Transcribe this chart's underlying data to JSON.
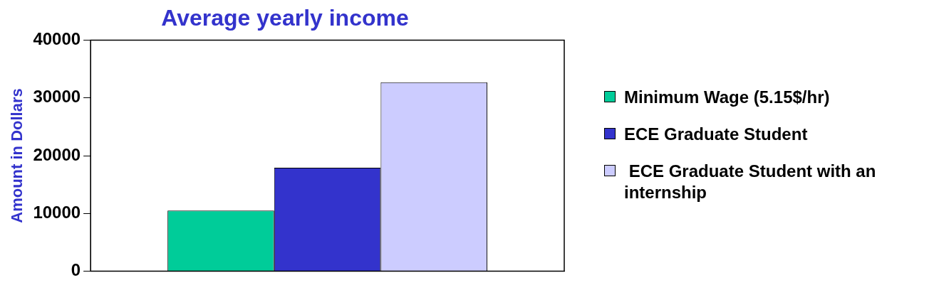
{
  "chart_data": {
    "type": "bar",
    "title": "Average yearly income",
    "ylabel": "Amount in Dollars",
    "categories": [
      null
    ],
    "series": [
      {
        "name": "Minimum Wage (5.15$/hr)",
        "color": "#00cc99",
        "values": [
          10500
        ]
      },
      {
        "name": "ECE Graduate Student",
        "color": "#3333cc",
        "values": [
          17900
        ]
      },
      {
        "name": " ECE Graduate Student with an internship",
        "color": "#ccccff",
        "values": [
          32700
        ]
      }
    ],
    "ylim": [
      0,
      40000
    ],
    "yticks": [
      0,
      10000,
      20000,
      30000,
      40000
    ],
    "legend": "right"
  }
}
